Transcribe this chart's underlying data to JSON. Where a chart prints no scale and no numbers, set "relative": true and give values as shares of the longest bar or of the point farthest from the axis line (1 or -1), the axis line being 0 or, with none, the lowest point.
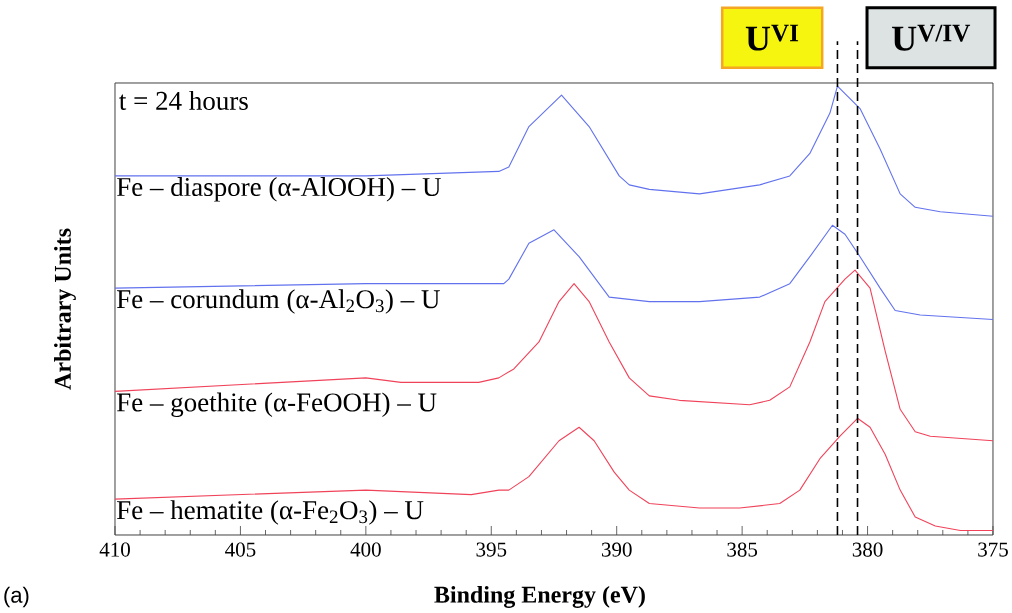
{
  "chart_data": {
    "type": "line",
    "relative": true,
    "xlabel": "Binding Energy (eV)",
    "ylabel": "Arbitrary Units",
    "xlim": [
      410,
      375
    ],
    "xticks": [
      410,
      405,
      400,
      395,
      390,
      385,
      380,
      375
    ],
    "tick_labels": "x",
    "annotations": [
      "t = 24 hours",
      "(a)"
    ],
    "ref_lines": [
      {
        "axis": "x",
        "value": 381.2,
        "label": "U$^{VI}$",
        "color": "#000000",
        "line_style": "dashed"
      },
      {
        "axis": "x",
        "value": 380.4,
        "label": "U$^{V/IV}$",
        "color": "#000000",
        "line_style": "dashed"
      }
    ],
    "series": [
      {
        "name": "Fe – diaspore (α-AlOOH) – U",
        "color": "#6272ee",
        "x": [
          410,
          400,
          394.7,
          394.3,
          393.5,
          392.2,
          391.1,
          389.9,
          389.5,
          388.7,
          386.7,
          384.3,
          383.1,
          382.3,
          381.5,
          381.2,
          380.3,
          379.5,
          378.7,
          378.1,
          377.1,
          375
        ],
        "values": [
          0.8,
          0.8,
          0.81,
          0.82,
          0.91,
          0.98,
          0.91,
          0.8,
          0.78,
          0.77,
          0.76,
          0.78,
          0.8,
          0.85,
          0.94,
          1.0,
          0.95,
          0.86,
          0.76,
          0.73,
          0.72,
          0.71
        ]
      },
      {
        "name": "Fe – corundum (α-Al$_{2}$O$_{3}$) – U",
        "color": "#6272ee",
        "x": [
          410,
          400,
          394.5,
          394.3,
          393.5,
          392.5,
          391.5,
          390.7,
          390.3,
          388.7,
          386.7,
          384.3,
          383.1,
          382.3,
          381.4,
          380.9,
          380.3,
          379.5,
          378.9,
          377.9,
          375
        ],
        "values": [
          0.55,
          0.56,
          0.56,
          0.57,
          0.65,
          0.68,
          0.62,
          0.56,
          0.53,
          0.52,
          0.52,
          0.53,
          0.56,
          0.62,
          0.69,
          0.67,
          0.62,
          0.55,
          0.5,
          0.49,
          0.48
        ]
      },
      {
        "name": "Fe – goethite (α-FeOOH) – U",
        "color": "#f0435a",
        "x": [
          410,
          400,
          398.6,
          395.5,
          394.7,
          394.1,
          393.1,
          392.3,
          391.7,
          391.1,
          390.3,
          389.5,
          388.7,
          387.5,
          384.7,
          383.9,
          383.1,
          382.3,
          381.7,
          380.9,
          380.5,
          379.9,
          379.3,
          378.7,
          378.1,
          377.5,
          375
        ],
        "values": [
          0.32,
          0.35,
          0.34,
          0.34,
          0.35,
          0.37,
          0.43,
          0.52,
          0.56,
          0.52,
          0.43,
          0.35,
          0.31,
          0.3,
          0.29,
          0.3,
          0.33,
          0.43,
          0.52,
          0.57,
          0.59,
          0.55,
          0.41,
          0.28,
          0.23,
          0.22,
          0.21
        ]
      },
      {
        "name": "Fe – hematite (α-Fe$_{2}$O$_{3}$) – U",
        "color": "#f0435a",
        "x": [
          410,
          400,
          395.8,
          394.7,
          394.3,
          393.5,
          392.3,
          391.5,
          390.9,
          390.1,
          389.5,
          388.7,
          386.7,
          385.1,
          383.5,
          382.7,
          381.9,
          381.1,
          380.4,
          379.9,
          379.3,
          378.7,
          378.1,
          377.3,
          376.3,
          375
        ],
        "values": [
          0.08,
          0.1,
          0.09,
          0.1,
          0.1,
          0.13,
          0.21,
          0.24,
          0.21,
          0.14,
          0.1,
          0.07,
          0.06,
          0.06,
          0.07,
          0.1,
          0.17,
          0.22,
          0.26,
          0.24,
          0.18,
          0.1,
          0.04,
          0.02,
          0.01,
          0.01
        ]
      }
    ]
  }
}
